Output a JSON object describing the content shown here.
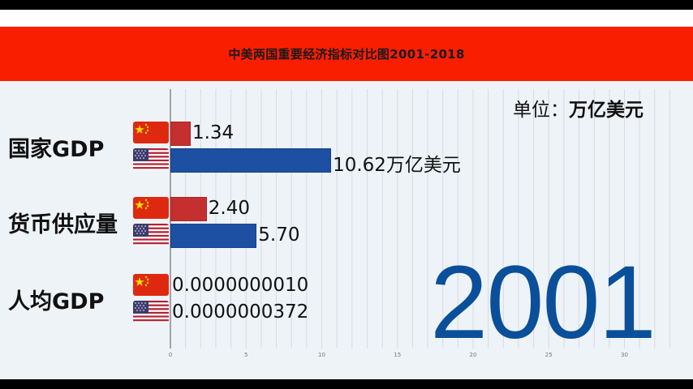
{
  "title": "中美两国重要经济指标对比图2001-2018",
  "unit_label": "单位：",
  "unit_value": "万亿美元",
  "year": "2001",
  "colors": {
    "china": "#c62f2f",
    "usa": "#1d4fa2",
    "title_bar": "#fa1e00",
    "year": "#0a4f99"
  },
  "chart_data": {
    "type": "bar",
    "orientation": "horizontal",
    "title": "中美两国重要经济指标对比图2001-2018",
    "categories": [
      "国家GDP",
      "货币供应量",
      "人均GDP"
    ],
    "series": [
      {
        "flag": "china-flag-icon",
        "values": [
          1.34,
          2.4,
          1e-09
        ],
        "labels": [
          "1.34",
          "2.40",
          "0.0000000010"
        ]
      },
      {
        "flag": "usa-flag-icon",
        "values": [
          10.62,
          5.7,
          3.72e-08
        ],
        "labels": [
          "10.62万亿美元",
          "5.70",
          "0.0000000372"
        ]
      }
    ],
    "xticks": [
      "0",
      "5",
      "10",
      "15",
      "20",
      "25",
      "30"
    ],
    "xlim": [
      0,
      33
    ],
    "grid": true,
    "unit": "万亿美元"
  }
}
